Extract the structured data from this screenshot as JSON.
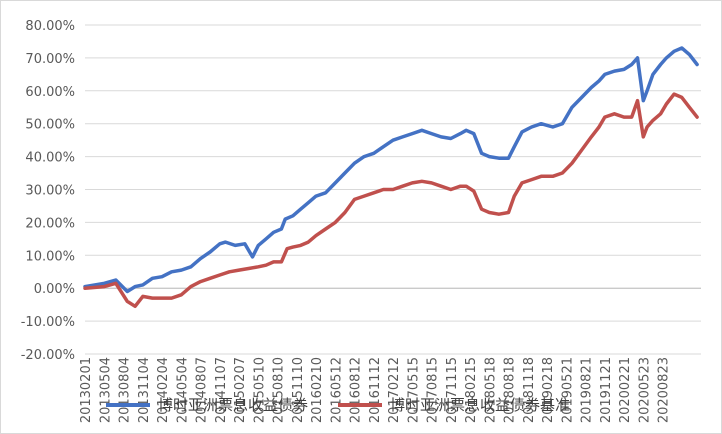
{
  "chart_data": {
    "type": "line",
    "title": "",
    "xlabel": "",
    "ylabel": "",
    "ylim": [
      -20,
      80
    ],
    "ytick_step": 10,
    "y_unit": "%",
    "ytick_labels": [
      "-20.00%",
      "-10.00%",
      "0.00%",
      "10.00%",
      "20.00%",
      "30.00%",
      "40.00%",
      "50.00%",
      "60.00%",
      "70.00%",
      "80.00%"
    ],
    "x_tick_labels": [
      "20130201",
      "20130504",
      "20130804",
      "20131104",
      "20140204",
      "20140504",
      "20140807",
      "20141107",
      "20150207",
      "20150510",
      "20150810",
      "20151110",
      "20160210",
      "20160512",
      "20160812",
      "20161112",
      "20170212",
      "20170515",
      "20170815",
      "20171115",
      "20180215",
      "20180518",
      "20180818",
      "20181118",
      "20190218",
      "20190521",
      "20190821",
      "20191121",
      "20200221",
      "20200523",
      "20200823"
    ],
    "grid": "horizontal",
    "legend_position": "bottom",
    "series": [
      {
        "name": "博时亚洲票息收益债券",
        "color": "#4472C4",
        "points": [
          [
            0,
            0.5
          ],
          [
            1,
            1.5
          ],
          [
            1.6,
            2.5
          ],
          [
            2.2,
            -1
          ],
          [
            2.6,
            0.5
          ],
          [
            3,
            1
          ],
          [
            3.5,
            3
          ],
          [
            4,
            3.5
          ],
          [
            4.5,
            5
          ],
          [
            5,
            5.5
          ],
          [
            5.5,
            6.5
          ],
          [
            6,
            9
          ],
          [
            6.5,
            11
          ],
          [
            7,
            13.5
          ],
          [
            7.3,
            14
          ],
          [
            7.8,
            13
          ],
          [
            8.3,
            13.5
          ],
          [
            8.7,
            9.5
          ],
          [
            9,
            13
          ],
          [
            9.4,
            15
          ],
          [
            9.8,
            17
          ],
          [
            10.2,
            18
          ],
          [
            10.4,
            21
          ],
          [
            10.8,
            22
          ],
          [
            11.2,
            24
          ],
          [
            11.6,
            26
          ],
          [
            12,
            28
          ],
          [
            12.5,
            29
          ],
          [
            13,
            32
          ],
          [
            13.5,
            35
          ],
          [
            14,
            38
          ],
          [
            14.5,
            40
          ],
          [
            15,
            41
          ],
          [
            15.5,
            43
          ],
          [
            16,
            45
          ],
          [
            16.5,
            46
          ],
          [
            17,
            47
          ],
          [
            17.5,
            48
          ],
          [
            18,
            47
          ],
          [
            18.5,
            46
          ],
          [
            19,
            45.5
          ],
          [
            19.5,
            47
          ],
          [
            19.8,
            48
          ],
          [
            20.2,
            47
          ],
          [
            20.6,
            41
          ],
          [
            21,
            40
          ],
          [
            21.5,
            39.5
          ],
          [
            22,
            39.5
          ],
          [
            22.3,
            43
          ],
          [
            22.7,
            47.5
          ],
          [
            23.2,
            49
          ],
          [
            23.7,
            50
          ],
          [
            24.3,
            49
          ],
          [
            24.8,
            50
          ],
          [
            25.3,
            55
          ],
          [
            25.8,
            58
          ],
          [
            26.3,
            61
          ],
          [
            26.7,
            63
          ],
          [
            27,
            65
          ],
          [
            27.5,
            66
          ],
          [
            28,
            66.5
          ],
          [
            28.4,
            68
          ],
          [
            28.7,
            70
          ],
          [
            29,
            57
          ],
          [
            29.2,
            60
          ],
          [
            29.5,
            65
          ],
          [
            29.9,
            68
          ],
          [
            30.2,
            70
          ],
          [
            30.6,
            72
          ],
          [
            31,
            73
          ],
          [
            31.4,
            71
          ],
          [
            31.8,
            68
          ]
        ]
      },
      {
        "name": "博时亚洲票息收益债券基准",
        "color": "#C0504D",
        "points": [
          [
            0,
            0
          ],
          [
            1,
            0.5
          ],
          [
            1.6,
            1.5
          ],
          [
            2.2,
            -4
          ],
          [
            2.6,
            -5.5
          ],
          [
            3,
            -2.5
          ],
          [
            3.5,
            -3
          ],
          [
            4,
            -3
          ],
          [
            4.5,
            -3
          ],
          [
            5,
            -2
          ],
          [
            5.5,
            0.5
          ],
          [
            6,
            2
          ],
          [
            6.5,
            3
          ],
          [
            7,
            4
          ],
          [
            7.5,
            5
          ],
          [
            8,
            5.5
          ],
          [
            8.5,
            6
          ],
          [
            9,
            6.5
          ],
          [
            9.4,
            7
          ],
          [
            9.8,
            8
          ],
          [
            10.2,
            8
          ],
          [
            10.5,
            12
          ],
          [
            10.8,
            12.5
          ],
          [
            11.2,
            13
          ],
          [
            11.6,
            14
          ],
          [
            12,
            16
          ],
          [
            12.5,
            18
          ],
          [
            13,
            20
          ],
          [
            13.5,
            23
          ],
          [
            14,
            27
          ],
          [
            14.5,
            28
          ],
          [
            15,
            29
          ],
          [
            15.5,
            30
          ],
          [
            16,
            30
          ],
          [
            16.5,
            31
          ],
          [
            17,
            32
          ],
          [
            17.5,
            32.5
          ],
          [
            18,
            32
          ],
          [
            18.5,
            31
          ],
          [
            19,
            30
          ],
          [
            19.5,
            31
          ],
          [
            19.8,
            31
          ],
          [
            20.2,
            29.5
          ],
          [
            20.6,
            24
          ],
          [
            21,
            23
          ],
          [
            21.5,
            22.5
          ],
          [
            22,
            23
          ],
          [
            22.3,
            28
          ],
          [
            22.7,
            32
          ],
          [
            23.2,
            33
          ],
          [
            23.7,
            34
          ],
          [
            24.3,
            34
          ],
          [
            24.8,
            35
          ],
          [
            25.3,
            38
          ],
          [
            25.8,
            42
          ],
          [
            26.3,
            46
          ],
          [
            26.7,
            49
          ],
          [
            27,
            52
          ],
          [
            27.5,
            53
          ],
          [
            28,
            52
          ],
          [
            28.4,
            52
          ],
          [
            28.7,
            57
          ],
          [
            29,
            46
          ],
          [
            29.2,
            49
          ],
          [
            29.5,
            51
          ],
          [
            29.9,
            53
          ],
          [
            30.2,
            56
          ],
          [
            30.6,
            59
          ],
          [
            31,
            58
          ],
          [
            31.4,
            55
          ],
          [
            31.8,
            52
          ]
        ]
      }
    ]
  }
}
